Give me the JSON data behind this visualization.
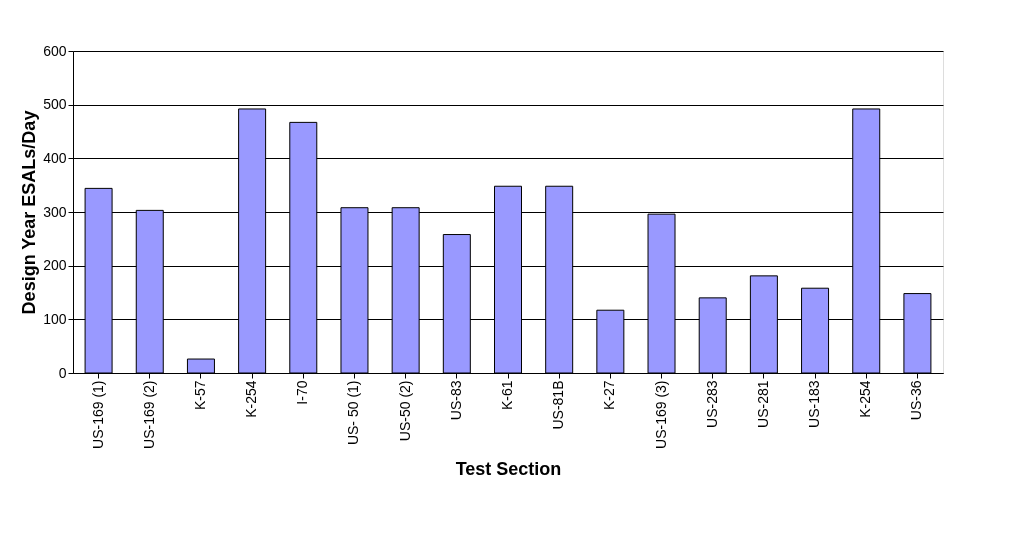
{
  "chart_data": {
    "type": "bar",
    "xlabel": "Test Section",
    "ylabel": "Design Year ESALs/Day",
    "categories": [
      "US-169 (1)",
      "US-169 (2)",
      "K-57",
      "K-254",
      "I-70",
      "US- 50 (1)",
      "US-50 (2)",
      "US-83",
      "K-61",
      "US-81B",
      "K-27",
      "US-169 (3)",
      "US-283",
      "US-281",
      "US-183",
      "K-254",
      "US-36"
    ],
    "values": [
      344,
      303,
      26,
      492,
      467,
      308,
      308,
      258,
      348,
      348,
      117,
      296,
      140,
      181,
      158,
      492,
      148
    ],
    "color": "#9999ff",
    "ylim": [
      0,
      600
    ],
    "yticks": [
      0,
      100,
      200,
      300,
      400,
      500,
      600
    ],
    "grid": "y"
  }
}
